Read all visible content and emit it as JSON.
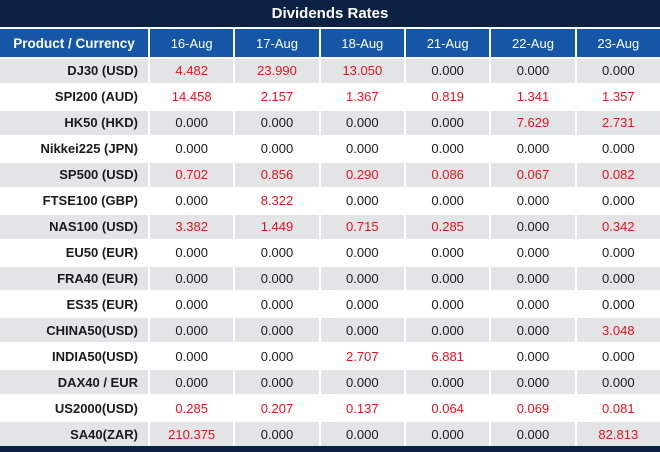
{
  "title": "Dividends Rates",
  "colors": {
    "title_bar_bg": "#0b2244",
    "header_bg": "#1557a6",
    "alt_row_bg": "#e3e4e6",
    "dividend_value_red": "#e8111c",
    "zero_value_text": "#1b1b1b"
  },
  "chart_data": {
    "type": "table",
    "title": "Dividends Rates",
    "columns": [
      "Product / Currency",
      "16-Aug",
      "17-Aug",
      "18-Aug",
      "21-Aug",
      "22-Aug",
      "23-Aug"
    ],
    "rows": [
      {
        "product": "DJ30 (USD)",
        "values": [
          "4.482",
          "23.990",
          "13.050",
          "0.000",
          "0.000",
          "0.000"
        ],
        "highlight": [
          1,
          1,
          1,
          0,
          0,
          0
        ]
      },
      {
        "product": "SPI200 (AUD)",
        "values": [
          "14.458",
          "2.157",
          "1.367",
          "0.819",
          "1.341",
          "1.357"
        ],
        "highlight": [
          1,
          1,
          1,
          1,
          1,
          1
        ]
      },
      {
        "product": "HK50 (HKD)",
        "values": [
          "0.000",
          "0.000",
          "0.000",
          "0.000",
          "7.629",
          "2.731"
        ],
        "highlight": [
          0,
          0,
          0,
          0,
          1,
          1
        ]
      },
      {
        "product": "Nikkei225 (JPN)",
        "values": [
          "0.000",
          "0.000",
          "0.000",
          "0.000",
          "0.000",
          "0.000"
        ],
        "highlight": [
          0,
          0,
          0,
          0,
          0,
          0
        ]
      },
      {
        "product": "SP500 (USD)",
        "values": [
          "0.702",
          "0.856",
          "0.290",
          "0.086",
          "0.067",
          "0.082"
        ],
        "highlight": [
          1,
          1,
          1,
          1,
          1,
          1
        ]
      },
      {
        "product": "FTSE100 (GBP)",
        "values": [
          "0.000",
          "8.322",
          "0.000",
          "0.000",
          "0.000",
          "0.000"
        ],
        "highlight": [
          0,
          1,
          0,
          0,
          0,
          0
        ]
      },
      {
        "product": "NAS100 (USD)",
        "values": [
          "3.382",
          "1.449",
          "0.715",
          "0.285",
          "0.000",
          "0.342"
        ],
        "highlight": [
          1,
          1,
          1,
          1,
          0,
          1
        ]
      },
      {
        "product": "EU50 (EUR)",
        "values": [
          "0.000",
          "0.000",
          "0.000",
          "0.000",
          "0.000",
          "0.000"
        ],
        "highlight": [
          0,
          0,
          0,
          0,
          0,
          0
        ]
      },
      {
        "product": "FRA40 (EUR)",
        "values": [
          "0.000",
          "0.000",
          "0.000",
          "0.000",
          "0.000",
          "0.000"
        ],
        "highlight": [
          0,
          0,
          0,
          0,
          0,
          0
        ]
      },
      {
        "product": "ES35 (EUR)",
        "values": [
          "0.000",
          "0.000",
          "0.000",
          "0.000",
          "0.000",
          "0.000"
        ],
        "highlight": [
          0,
          0,
          0,
          0,
          0,
          0
        ]
      },
      {
        "product": "CHINA50(USD)",
        "values": [
          "0.000",
          "0.000",
          "0.000",
          "0.000",
          "0.000",
          "3.048"
        ],
        "highlight": [
          0,
          0,
          0,
          0,
          0,
          1
        ]
      },
      {
        "product": "INDIA50(USD)",
        "values": [
          "0.000",
          "0.000",
          "2.707",
          "6.881",
          "0.000",
          "0.000"
        ],
        "highlight": [
          0,
          0,
          1,
          1,
          0,
          0
        ]
      },
      {
        "product": "DAX40 / EUR",
        "values": [
          "0.000",
          "0.000",
          "0.000",
          "0.000",
          "0.000",
          "0.000"
        ],
        "highlight": [
          0,
          0,
          0,
          0,
          0,
          0
        ]
      },
      {
        "product": "US2000(USD)",
        "values": [
          "0.285",
          "0.207",
          "0.137",
          "0.064",
          "0.069",
          "0.081"
        ],
        "highlight": [
          1,
          1,
          1,
          1,
          1,
          1
        ]
      },
      {
        "product": "SA40(ZAR)",
        "values": [
          "210.375",
          "0.000",
          "0.000",
          "0.000",
          "0.000",
          "82.813"
        ],
        "highlight": [
          1,
          0,
          0,
          0,
          0,
          1
        ]
      }
    ]
  }
}
